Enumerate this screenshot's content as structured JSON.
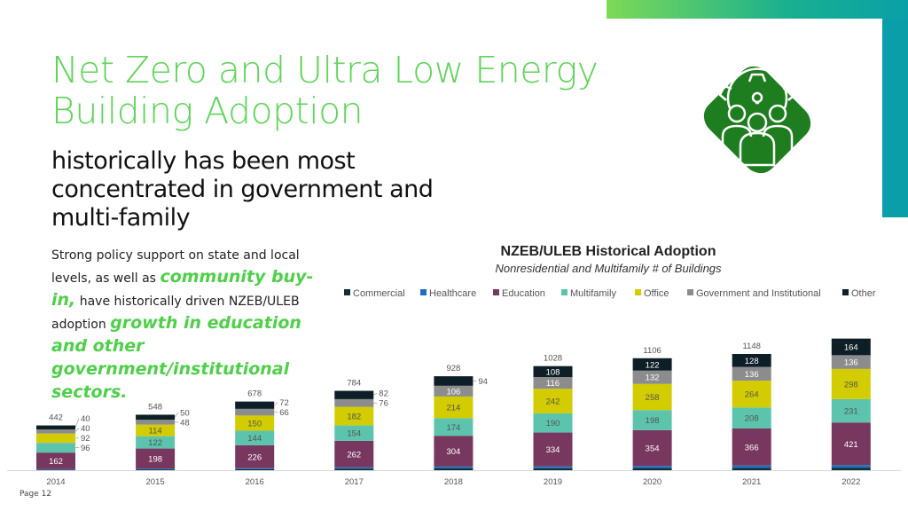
{
  "slide": {
    "title_line1": "Net Zero and Ultra Low Energy",
    "title_line2": "Building Adoption",
    "subtitle": "historically has been most concentrated in government and multi-family",
    "body_part1": "Strong policy support on state and local levels, as well as ",
    "body_em1": "community buy-in,",
    "body_part2": " have historically driven NZEB/ULEB adoption ",
    "body_em2": "growth in education and other government/institutional sectors.",
    "page_label": "Page 12",
    "icon": "people-gear-lightbulb-icon",
    "colors": {
      "title": "#5fd35a",
      "icon_bg": "#1e7d1e",
      "accent_teal": "#0a9fa8"
    }
  },
  "chart_data": {
    "type": "bar",
    "stacked": true,
    "title": "NZEB/ULEB Historical Adoption",
    "subtitle": "Nonresidential and Multifamily # of Buildings",
    "legend_position": "top",
    "grid": false,
    "categories": [
      "2014",
      "2015",
      "2016",
      "2017",
      "2018",
      "2019",
      "2020",
      "2021",
      "2022"
    ],
    "totals": [
      "442",
      "548",
      "678",
      "784",
      "928",
      "1028",
      "1106",
      "1148",
      ""
    ],
    "series": [
      {
        "name": "Commercial",
        "color": "#0f2f3a",
        "values": [
          6,
          8,
          10,
          14,
          18,
          19,
          21,
          23,
          25
        ],
        "labeled": false
      },
      {
        "name": "Healthcare",
        "color": "#1f6fbf",
        "values": [
          6,
          8,
          10,
          14,
          18,
          19,
          21,
          23,
          25
        ],
        "labeled": false
      },
      {
        "name": "Education",
        "color": "#78375e",
        "values": [
          162,
          198,
          226,
          262,
          304,
          334,
          354,
          366,
          421
        ],
        "labeled": true
      },
      {
        "name": "Multifamily",
        "color": "#5cc4ac",
        "values": [
          96,
          122,
          144,
          154,
          174,
          190,
          198,
          208,
          231
        ],
        "labeled": true
      },
      {
        "name": "Office",
        "color": "#d2cc00",
        "values": [
          92,
          114,
          150,
          182,
          214,
          242,
          258,
          264,
          298
        ],
        "labeled": true
      },
      {
        "name": "Government and Institutional",
        "color": "#8c8c8c",
        "values": [
          40,
          48,
          66,
          76,
          106,
          116,
          132,
          136,
          136
        ],
        "labeled": true
      },
      {
        "name": "Other",
        "color": "#0d1e26",
        "values": [
          40,
          50,
          72,
          82,
          94,
          108,
          122,
          128,
          164
        ],
        "labeled": true
      }
    ]
  }
}
